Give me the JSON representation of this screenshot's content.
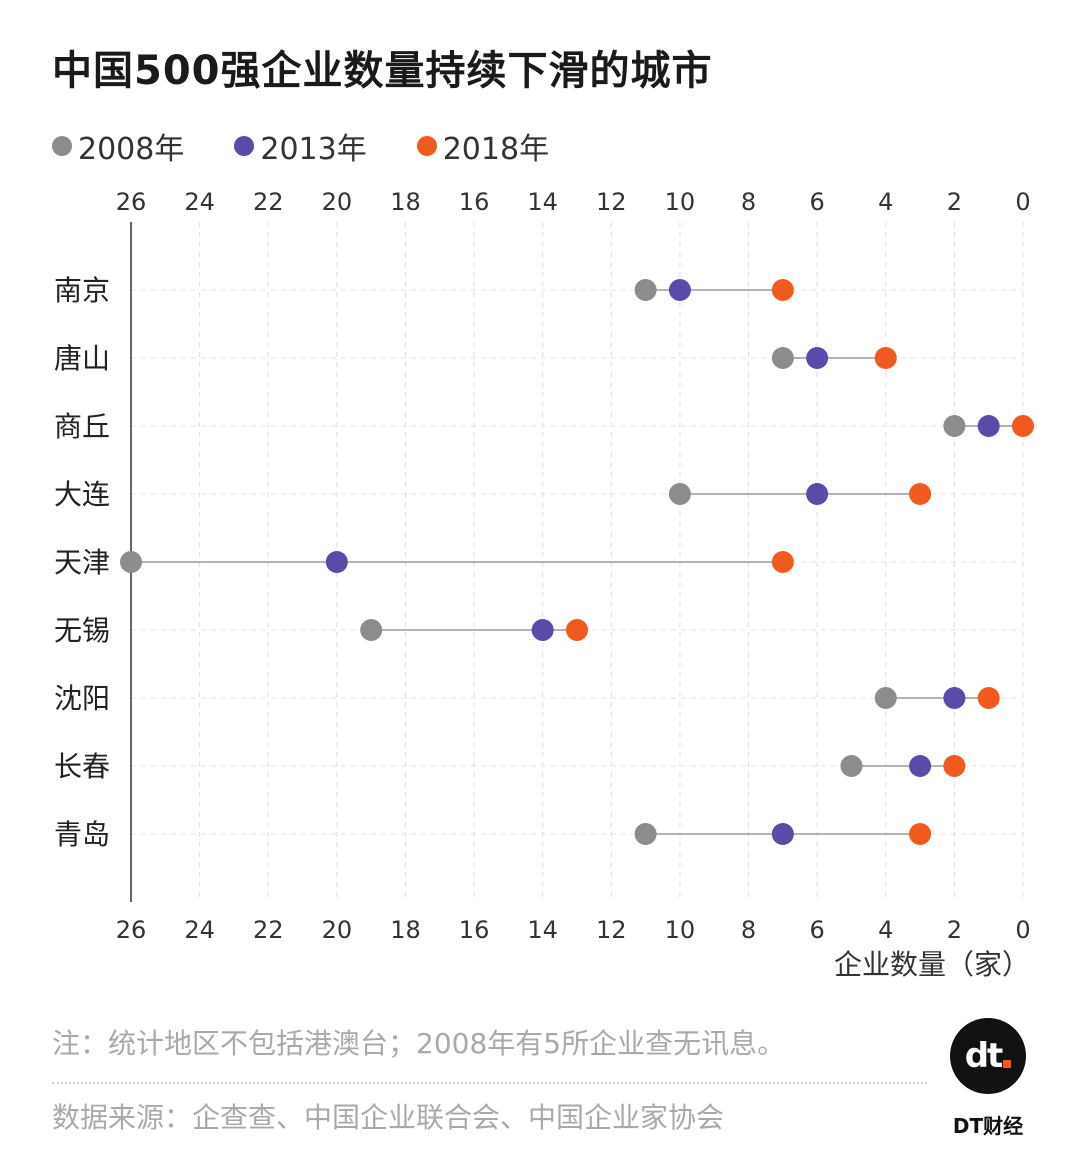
{
  "title": "中国500强企业数量持续下滑的城市",
  "legend": [
    {
      "label": "2008年",
      "color": "#8c8c8c"
    },
    {
      "label": "2013年",
      "color": "#5b4aa8"
    },
    {
      "label": "2018年",
      "color": "#f05a1e"
    }
  ],
  "chart_data": {
    "type": "dot-plot",
    "x_axis": {
      "label": "企业数量（家）",
      "range": [
        0,
        26
      ],
      "reversed": true,
      "ticks": [
        26,
        24,
        22,
        20,
        18,
        16,
        14,
        12,
        10,
        8,
        6,
        4,
        2,
        0
      ],
      "position": "top and bottom"
    },
    "grid": true,
    "legend_position": "top-left",
    "categories": [
      "南京",
      "唐山",
      "商丘",
      "大连",
      "天津",
      "无锡",
      "沈阳",
      "长春",
      "青岛"
    ],
    "series": [
      {
        "name": "2008年",
        "color": "#8c8c8c",
        "values": [
          11,
          7,
          2,
          10,
          26,
          19,
          4,
          5,
          11
        ]
      },
      {
        "name": "2013年",
        "color": "#5b4aa8",
        "values": [
          10,
          6,
          1,
          6,
          20,
          14,
          2,
          3,
          7
        ]
      },
      {
        "name": "2018年",
        "color": "#f05a1e",
        "values": [
          7,
          4,
          0,
          3,
          7,
          13,
          1,
          2,
          3
        ]
      }
    ]
  },
  "footer": {
    "note": "注：统计地区不包括港澳台；2008年有5所企业查无讯息。",
    "source": "数据来源：企查查、中国企业联合会、中国企业家协会",
    "logo_text": "dt",
    "brand": "DT财经"
  }
}
